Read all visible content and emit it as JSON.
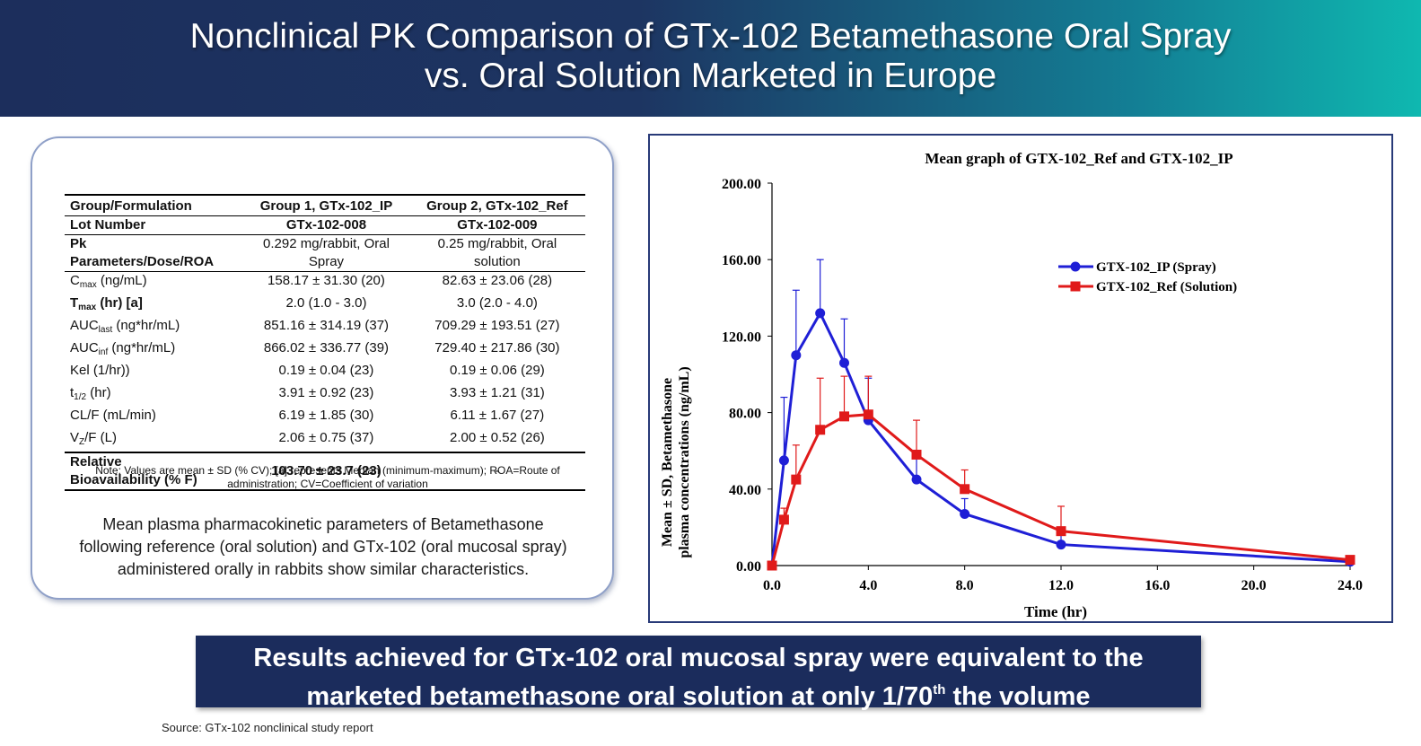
{
  "header": {
    "title_line1": "Nonclinical PK Comparison of GTx-102 Betamethasone Oral Spray",
    "title_line2": "vs. Oral Solution Marketed in Europe"
  },
  "table": {
    "col_headers": [
      "Group/Formulation",
      "Group 1, GTx-102_IP",
      "Group 2, GTx-102_Ref"
    ],
    "lot": {
      "label": "Lot Number",
      "g1": "GTx-102-008",
      "g2": "GTx-102-009"
    },
    "pk_dose": {
      "label1": "Pk",
      "label2": "Parameters/Dose/ROA",
      "g1_line1": "0.292 mg/rabbit, Oral",
      "g1_line2": "Spray",
      "g2_line1": "0.25 mg/rabbit, Oral",
      "g2_line2": "solution"
    },
    "rows": [
      {
        "base": "C",
        "sub": "max",
        "tail": " (ng/mL)",
        "g1": "158.17 ± 31.30 (20)",
        "g2": "82.63 ± 23.06 (28)"
      },
      {
        "base": "T",
        "sub": "max",
        "tail": " (hr) [a]",
        "g1": "2.0 (1.0 - 3.0)",
        "g2": "3.0 (2.0 - 4.0)"
      },
      {
        "base": "AUC",
        "sub": "last",
        "tail": " (ng*hr/mL)",
        "g1": "851.16 ± 314.19 (37)",
        "g2": "709.29 ± 193.51 (27)"
      },
      {
        "base": "AUC",
        "sub": "inf",
        "tail": " (ng*hr/mL)",
        "g1": "866.02 ± 336.77 (39)",
        "g2": "729.40 ± 217.86 (30)"
      },
      {
        "base": "Kel (1/hr))",
        "sub": "",
        "tail": "",
        "g1": "0.19 ± 0.04 (23)",
        "g2": "0.19 ± 0.06 (29)"
      },
      {
        "base": "t",
        "sub": "1/2",
        "tail": " (hr)",
        "g1": "3.91 ± 0.92 (23)",
        "g2": "3.93 ± 1.21 (31)"
      },
      {
        "base": "CL/F (mL/min)",
        "sub": "",
        "tail": "",
        "g1": "6.19 ± 1.85 (30)",
        "g2": "6.11 ± 1.67 (27)"
      },
      {
        "base": "V",
        "sub": "Z",
        "tail": "/F (L)",
        "g1": "2.06 ± 0.75 (37)",
        "g2": "2.00 ± 0.52 (26)"
      }
    ],
    "bio": {
      "label1": "Relative",
      "label2": "Bioavailability (% F)",
      "g1": "103.70 ± 23.7 (23)",
      "g2": "-"
    },
    "note_line1": "Note: Values are mean ± SD (% CV); [a] represents Median (minimum-maximum); ROA=Route of",
    "note_line2": "administration; CV=Coefficient of variation"
  },
  "summary": {
    "line1": "Mean plasma pharmacokinetic parameters of Betamethasone",
    "line2": "following reference (oral solution) and GTx-102 (oral mucosal spray)",
    "line3": "administered orally in rabbits show similar characteristics."
  },
  "chart_data": {
    "type": "line",
    "title": "Mean graph of GTX-102_Ref and GTX-102_IP",
    "xlabel": "Time (hr)",
    "ylabel_line1": "Mean ± SD, Betamethasone",
    "ylabel_line2": "plasma concentrations (ng/mL)",
    "xlim": [
      0,
      24
    ],
    "ylim": [
      0,
      200
    ],
    "xticks": [
      0,
      4,
      8,
      12,
      16,
      20,
      24
    ],
    "xtick_labels": [
      "0.0",
      "4.0",
      "8.0",
      "12.0",
      "16.0",
      "20.0",
      "24.0"
    ],
    "yticks": [
      0,
      40,
      80,
      120,
      160,
      200
    ],
    "ytick_labels": [
      "0.00",
      "40.00",
      "80.00",
      "120.00",
      "160.00",
      "200.00"
    ],
    "legend_position": "top-right",
    "series": [
      {
        "name": "GTX-102_IP (Spray)",
        "color": "#1f1fd6",
        "marker": "circle",
        "x": [
          0,
          0.5,
          1,
          2,
          3,
          4,
          6,
          8,
          12,
          24
        ],
        "values": [
          0,
          55,
          110,
          132,
          106,
          76,
          45,
          27,
          11,
          2
        ],
        "sd": [
          0,
          33,
          34,
          28,
          23,
          22,
          13,
          8,
          5,
          1
        ]
      },
      {
        "name": "GTX-102_Ref (Solution)",
        "color": "#e01a1a",
        "marker": "square",
        "x": [
          0,
          0.5,
          1,
          2,
          3,
          4,
          6,
          8,
          12,
          24
        ],
        "values": [
          0,
          24,
          45,
          71,
          78,
          79,
          58,
          40,
          18,
          3
        ],
        "sd": [
          0,
          6,
          18,
          27,
          21,
          20,
          18,
          10,
          13,
          2
        ]
      }
    ]
  },
  "banner": {
    "line1": "Results achieved for GTx-102 oral mucosal spray were equivalent to the",
    "line2_pre": "marketed betamethasone oral solution at only 1/70",
    "line2_sup": "th",
    "line2_post": " the volume"
  },
  "source": "Source: GTx-102 nonclinical study report"
}
